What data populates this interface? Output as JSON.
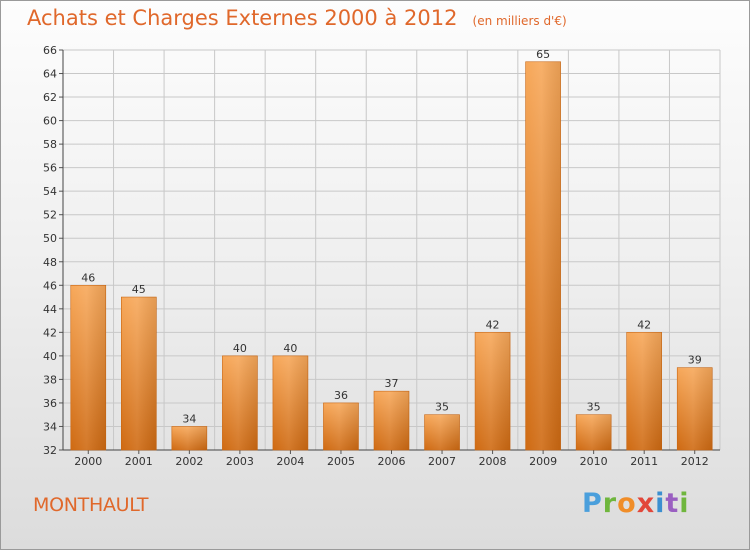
{
  "header": {
    "title": "Achats et Charges Externes 2000 à 2012",
    "subtitle": "(en milliers d'€)"
  },
  "footer": {
    "location": "MONTHAULT",
    "logo_text": "Proxiti"
  },
  "colors": {
    "title": "#e0682b",
    "bar_light": "#f7a85a",
    "bar_dark": "#cf6a12",
    "grid": "#c8c8c8"
  },
  "chart_data": {
    "type": "bar",
    "title": "Achats et Charges Externes 2000 à 2012",
    "subtitle": "(en milliers d'€)",
    "xlabel": "",
    "ylabel": "",
    "categories": [
      "2000",
      "2001",
      "2002",
      "2003",
      "2004",
      "2005",
      "2006",
      "2007",
      "2008",
      "2009",
      "2010",
      "2011",
      "2012"
    ],
    "values": [
      46,
      45,
      34,
      40,
      40,
      36,
      37,
      35,
      42,
      65,
      35,
      42,
      39
    ],
    "ylim": [
      32,
      66
    ],
    "yticks": [
      32,
      34,
      36,
      38,
      40,
      42,
      44,
      46,
      48,
      50,
      52,
      54,
      56,
      58,
      60,
      62,
      64,
      66
    ],
    "grid": true,
    "data_labels": true
  }
}
